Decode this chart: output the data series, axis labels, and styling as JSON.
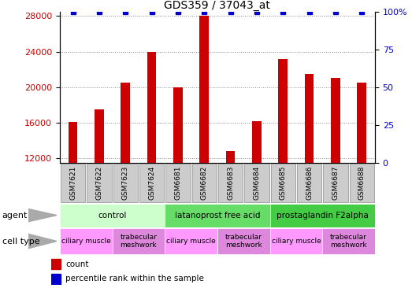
{
  "title": "GDS359 / 37043_at",
  "samples": [
    "GSM7621",
    "GSM7622",
    "GSM7623",
    "GSM7624",
    "GSM6681",
    "GSM6682",
    "GSM6683",
    "GSM6684",
    "GSM6685",
    "GSM6686",
    "GSM6687",
    "GSM6688"
  ],
  "counts": [
    16100,
    17500,
    20500,
    24000,
    20000,
    28000,
    12800,
    16200,
    23200,
    21500,
    21000,
    20500
  ],
  "percentiles": [
    100,
    100,
    100,
    100,
    100,
    100,
    100,
    100,
    100,
    100,
    100,
    100
  ],
  "ylim_left": [
    11500,
    28500
  ],
  "ylim_right": [
    0,
    100
  ],
  "yticks_left": [
    12000,
    16000,
    20000,
    24000,
    28000
  ],
  "yticks_right": [
    0,
    25,
    50,
    75,
    100
  ],
  "bar_color": "#cc0000",
  "percentile_color": "#0000cc",
  "agent_groups": [
    {
      "label": "control",
      "start": 0,
      "end": 4,
      "color": "#ccffcc"
    },
    {
      "label": "latanoprost free acid",
      "start": 4,
      "end": 8,
      "color": "#66dd66"
    },
    {
      "label": "prostaglandin F2alpha",
      "start": 8,
      "end": 12,
      "color": "#44cc44"
    }
  ],
  "cell_type_groups": [
    {
      "label": "ciliary muscle",
      "start": 0,
      "end": 2,
      "color": "#ff99ff"
    },
    {
      "label": "trabecular\nmeshwork",
      "start": 2,
      "end": 4,
      "color": "#dd88dd"
    },
    {
      "label": "ciliary muscle",
      "start": 4,
      "end": 6,
      "color": "#ff99ff"
    },
    {
      "label": "trabecular\nmeshwork",
      "start": 6,
      "end": 8,
      "color": "#dd88dd"
    },
    {
      "label": "ciliary muscle",
      "start": 8,
      "end": 10,
      "color": "#ff99ff"
    },
    {
      "label": "trabecular\nmeshwork",
      "start": 10,
      "end": 12,
      "color": "#dd88dd"
    }
  ],
  "legend_count_label": "count",
  "legend_percentile_label": "percentile rank within the sample",
  "xlabel_agent": "agent",
  "xlabel_celltype": "cell type",
  "bar_width": 0.35,
  "tick_label_fontsize": 6.5,
  "title_fontsize": 10,
  "sample_box_color": "#cccccc",
  "sample_box_edge": "#999999"
}
